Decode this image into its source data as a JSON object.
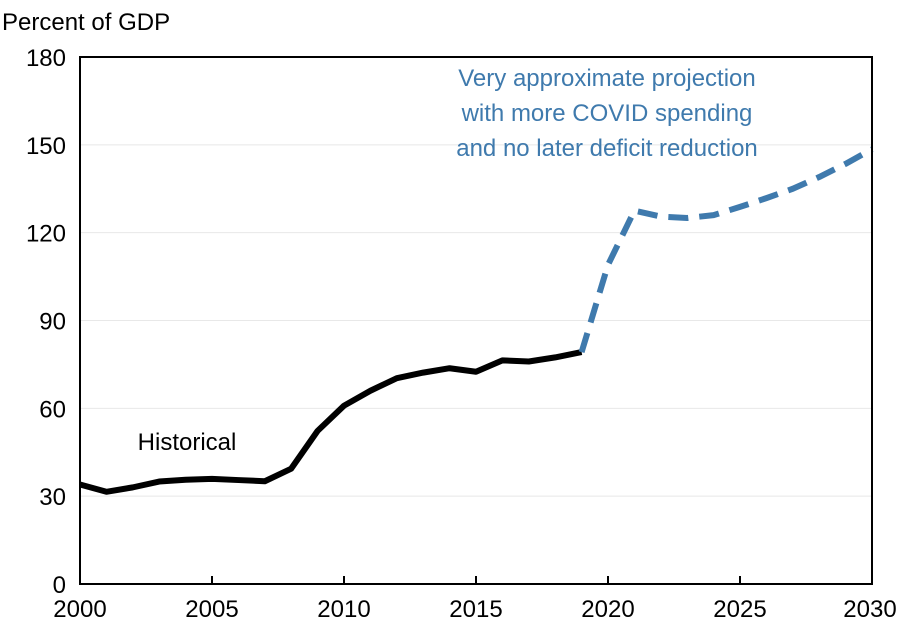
{
  "chart_data": {
    "type": "line",
    "title": "",
    "ylabel": "Percent of GDP",
    "xlabel": "",
    "xlim": [
      2000,
      2030
    ],
    "ylim": [
      0,
      180
    ],
    "x_ticks": [
      "2000",
      "2005",
      "2010",
      "2015",
      "2020",
      "2025",
      "2030"
    ],
    "y_ticks": [
      "0",
      "30",
      "60",
      "90",
      "120",
      "150",
      "180"
    ],
    "grid": true,
    "series": [
      {
        "name": "Historical",
        "style": "solid",
        "color": "#000000",
        "x": [
          2000,
          2001,
          2002,
          2003,
          2004,
          2005,
          2006,
          2007,
          2008,
          2009,
          2010,
          2011,
          2012,
          2013,
          2014,
          2015,
          2016,
          2017,
          2018,
          2019
        ],
        "y": [
          34,
          31.5,
          33,
          35,
          35.6,
          35.9,
          35.5,
          35.1,
          39.4,
          52.3,
          60.9,
          66,
          70.3,
          72.2,
          73.7,
          72.5,
          76.4,
          76,
          77.4,
          79.2
        ]
      },
      {
        "name": "Very approximate projection with more COVID spending and no later deficit reduction",
        "style": "dashed",
        "color": "#3F7AAD",
        "x": [
          2019,
          2020,
          2021,
          2022,
          2023,
          2024,
          2025,
          2026,
          2027,
          2028,
          2029,
          2030
        ],
        "y": [
          79.2,
          109,
          127.5,
          125.5,
          125,
          126,
          128.8,
          131.8,
          135,
          139,
          143.5,
          148.5
        ]
      }
    ],
    "annotations": {
      "historical_label": "Historical",
      "projection_lines": [
        "Very approximate projection",
        "with more COVID spending",
        "and no later deficit reduction"
      ]
    }
  }
}
